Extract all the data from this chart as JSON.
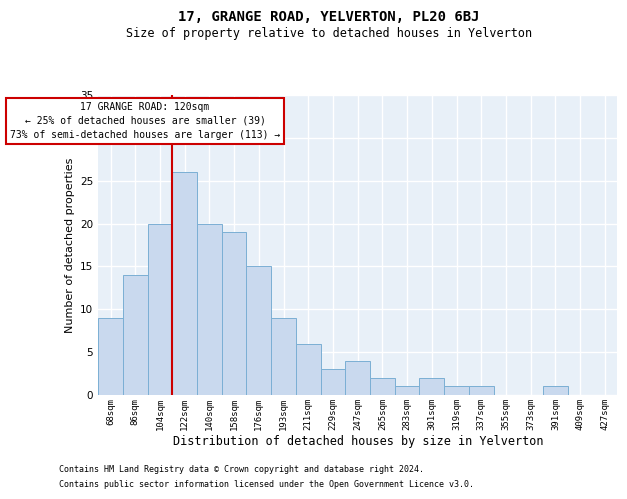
{
  "title": "17, GRANGE ROAD, YELVERTON, PL20 6BJ",
  "subtitle": "Size of property relative to detached houses in Yelverton",
  "xlabel": "Distribution of detached houses by size in Yelverton",
  "ylabel": "Number of detached properties",
  "bar_labels": [
    "68sqm",
    "86sqm",
    "104sqm",
    "122sqm",
    "140sqm",
    "158sqm",
    "176sqm",
    "193sqm",
    "211sqm",
    "229sqm",
    "247sqm",
    "265sqm",
    "283sqm",
    "301sqm",
    "319sqm",
    "337sqm",
    "355sqm",
    "373sqm",
    "391sqm",
    "409sqm",
    "427sqm"
  ],
  "bar_values": [
    9,
    14,
    20,
    26,
    20,
    19,
    15,
    9,
    6,
    3,
    4,
    2,
    1,
    2,
    1,
    1,
    0,
    0,
    1,
    0,
    0
  ],
  "bar_color": "#c9d9ee",
  "bar_edge_color": "#7bafd4",
  "background_color": "#e8f0f8",
  "grid_color": "#ffffff",
  "vline_color": "#cc0000",
  "annotation_title": "17 GRANGE ROAD: 120sqm",
  "annotation_line1": "← 25% of detached houses are smaller (39)",
  "annotation_line2": "73% of semi-detached houses are larger (113) →",
  "annotation_box_color": "#ffffff",
  "annotation_box_edge": "#cc0000",
  "ylim": [
    0,
    35
  ],
  "yticks": [
    0,
    5,
    10,
    15,
    20,
    25,
    30,
    35
  ],
  "footnote1": "Contains HM Land Registry data © Crown copyright and database right 2024.",
  "footnote2": "Contains public sector information licensed under the Open Government Licence v3.0."
}
